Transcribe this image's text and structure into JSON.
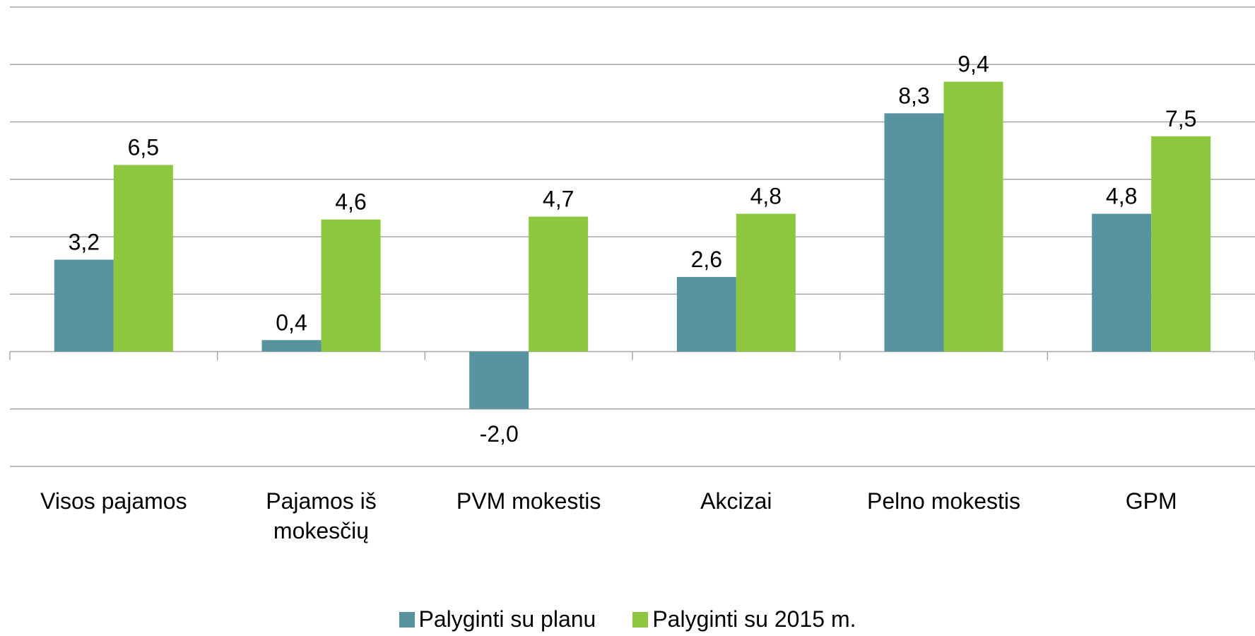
{
  "chart_data": {
    "type": "bar",
    "categories": [
      "Visos pajamos",
      "Pajamos iš mokesčių",
      "PVM mokestis",
      "Akcizai",
      "Pelno mokestis",
      "GPM"
    ],
    "series": [
      {
        "name": "Palyginti su planu",
        "color": "#5794a0",
        "values": [
          3.2,
          0.4,
          -2.0,
          2.6,
          8.3,
          4.8
        ],
        "value_labels": [
          "3,2",
          "0,4",
          "-2,0",
          "2,6",
          "8,3",
          "4,8"
        ]
      },
      {
        "name": "Palyginti su 2015 m.",
        "color": "#8dc63f",
        "values": [
          6.5,
          4.6,
          4.7,
          4.8,
          9.4,
          7.5
        ],
        "value_labels": [
          "6,5",
          "4,6",
          "4,7",
          "4,8",
          "9,4",
          "7,5"
        ]
      }
    ],
    "negative_label_color": "#ff0000",
    "ylim": [
      -4,
      12
    ],
    "yticks": [
      -4,
      -2,
      0,
      2,
      4,
      6,
      8,
      10,
      12
    ],
    "grid": true,
    "legend": "bottom"
  }
}
